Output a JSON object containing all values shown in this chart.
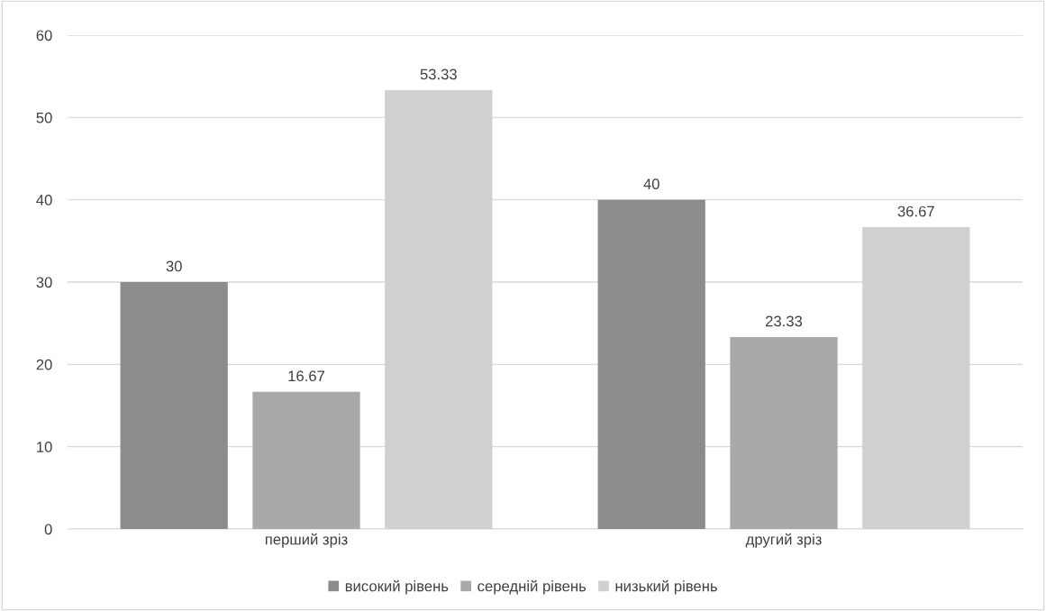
{
  "chart_data": {
    "type": "bar",
    "categories": [
      "перший зріз",
      "другий зріз"
    ],
    "series": [
      {
        "name": "високий рівень",
        "color": "#8c8c8c",
        "values": [
          30,
          40
        ]
      },
      {
        "name": "середній рівень",
        "color": "#a9a9a9",
        "values": [
          16.67,
          23.33
        ]
      },
      {
        "name": "низький рівень",
        "color": "#d0d0d0",
        "values": [
          53.33,
          36.67
        ]
      }
    ],
    "ylim": [
      0,
      60
    ],
    "yticks": [
      0,
      10,
      20,
      30,
      40,
      50,
      60
    ],
    "grid": "y",
    "legend": "bottom",
    "data_labels": true
  }
}
